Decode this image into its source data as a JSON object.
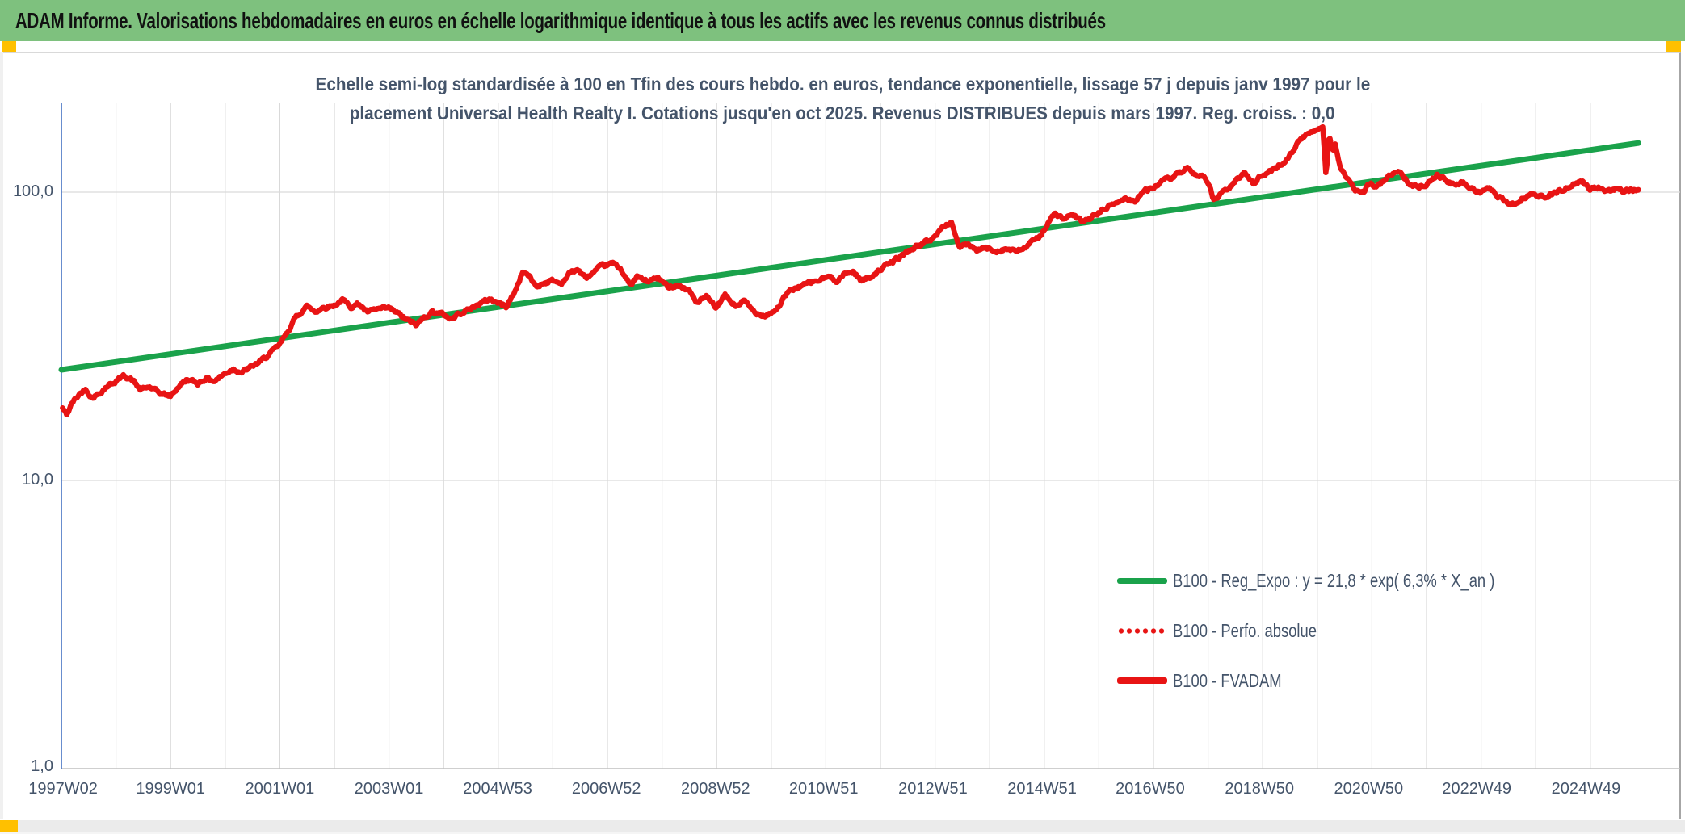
{
  "window": {
    "title": "ADAM Informe. Valorisations hebdomadaires en euros en échelle logarithmique identique à tous les actifs avec les revenus connus distribués",
    "accent_colors": {
      "title_bar": "#7ec17e",
      "corner_squares": "#ffc000",
      "reg_line": "#1aa24b",
      "series_red": "#e81414",
      "text_navy": "#44546a",
      "gridline": "#d9d9d9",
      "y_axis_line": "#4472c4"
    }
  },
  "chart": {
    "subtitle_line1": "Echelle semi-log standardisée à 100 en Tfin des cours hebdo. en euros, tendance exponentielle, lissage 57 j depuis janv 1997 pour le",
    "subtitle_line2": "placement Universal Health Realty I. Cotations jusqu'en oct 2025. Revenus DISTRIBUES depuis mars 1997. Reg. croiss. : 0,0",
    "y_ticks": [
      "100,0",
      "10,0",
      "1,0"
    ],
    "legend": [
      {
        "label": "B100 - Reg_Expo : y = 21,8 * exp( 6,3% *  X_an )",
        "style": "solid",
        "color": "#1aa24b"
      },
      {
        "label": "B100 - Perfo. absolue",
        "style": "dotted",
        "color": "#e81414"
      },
      {
        "label": "B100 - FVADAM",
        "style": "solid-thick",
        "color": "#e81414"
      }
    ]
  },
  "chart_data": {
    "type": "line",
    "title": "Echelle semi-log standardisée à 100 en Tfin des cours hebdo. en euros, tendance exponentielle, lissage 57 j depuis janv 1997 pour le placement Universal Health Realty I. Cotations jusqu'en oct 2025. Revenus DISTRIBUES depuis mars 1997. Reg. croiss. : 0,0",
    "y_axis": {
      "scale": "log10",
      "ticks": [
        100.0,
        10.0,
        1.0
      ],
      "tick_labels": [
        "100,0",
        "10,0",
        "1,0"
      ],
      "range_shown": [
        1.0,
        205.0
      ]
    },
    "x_axis": {
      "unit": "ISO week (weekly cotations)",
      "ticks": [
        {
          "label": "1997W02",
          "year": 1997.03
        },
        {
          "label": "1999W01",
          "year": 1999.0
        },
        {
          "label": "2001W01",
          "year": 2001.0
        },
        {
          "label": "2003W01",
          "year": 2003.0
        },
        {
          "label": "2004W53",
          "year": 2004.99
        },
        {
          "label": "2006W52",
          "year": 2006.98
        },
        {
          "label": "2008W52",
          "year": 2008.98
        },
        {
          "label": "2010W51",
          "year": 2010.96
        },
        {
          "label": "2012W51",
          "year": 2012.96
        },
        {
          "label": "2014W51",
          "year": 2014.96
        },
        {
          "label": "2016W50",
          "year": 2016.94
        },
        {
          "label": "2018W50",
          "year": 2018.94
        },
        {
          "label": "2020W50",
          "year": 2020.94
        },
        {
          "label": "2022W49",
          "year": 2022.92
        },
        {
          "label": "2024W49",
          "year": 2024.92
        }
      ],
      "gridlines_every_year": true,
      "grid_year_start": 1997,
      "grid_year_end": 2025,
      "range_years": [
        1997.0,
        2026.6
      ]
    },
    "series": [
      {
        "name": "B100 - Reg_Expo : y = 21,8 * exp( 6,3% *  X_an )",
        "color": "#1aa24b",
        "style": "solid",
        "width": 7,
        "points": [
          [
            1997.0,
            24.2
          ],
          [
            2025.88,
            148.0
          ]
        ]
      },
      {
        "name": "B100 - Perfo. absolue",
        "color": "#e81414",
        "style": "dotted",
        "width": 5,
        "coincident_with": "B100 - FVADAM"
      },
      {
        "name": "B100 - FVADAM",
        "color": "#e81414",
        "style": "solid",
        "width": 6.5,
        "points": [
          [
            1997.02,
            17.8
          ],
          [
            1997.1,
            16.9
          ],
          [
            1997.2,
            18.6
          ],
          [
            1997.33,
            19.9
          ],
          [
            1997.45,
            20.8
          ],
          [
            1997.55,
            19.4
          ],
          [
            1997.68,
            19.9
          ],
          [
            1997.83,
            21.2
          ],
          [
            1998.0,
            22.1
          ],
          [
            1998.15,
            23.1
          ],
          [
            1998.3,
            22.3
          ],
          [
            1998.45,
            20.6
          ],
          [
            1998.6,
            21.1
          ],
          [
            1998.8,
            20.1
          ],
          [
            1999.0,
            19.6
          ],
          [
            1999.15,
            21.2
          ],
          [
            1999.3,
            22.4
          ],
          [
            1999.5,
            21.7
          ],
          [
            1999.65,
            22.6
          ],
          [
            1999.8,
            22.1
          ],
          [
            2000.0,
            23.5
          ],
          [
            2000.15,
            24.4
          ],
          [
            2000.3,
            23.7
          ],
          [
            2000.5,
            24.9
          ],
          [
            2000.65,
            25.9
          ],
          [
            2000.8,
            27.3
          ],
          [
            2001.0,
            29.6
          ],
          [
            2001.15,
            33.0
          ],
          [
            2001.3,
            37.0
          ],
          [
            2001.5,
            40.2
          ],
          [
            2001.65,
            38.5
          ],
          [
            2001.8,
            39.8
          ],
          [
            2002.0,
            40.5
          ],
          [
            2002.15,
            42.3
          ],
          [
            2002.3,
            40.1
          ],
          [
            2002.45,
            41.0
          ],
          [
            2002.6,
            38.3
          ],
          [
            2002.8,
            39.3
          ],
          [
            2003.0,
            39.5
          ],
          [
            2003.15,
            38.1
          ],
          [
            2003.3,
            36.3
          ],
          [
            2003.5,
            34.6
          ],
          [
            2003.65,
            36.9
          ],
          [
            2003.8,
            38.5
          ],
          [
            2004.0,
            37.6
          ],
          [
            2004.15,
            36.3
          ],
          [
            2004.3,
            38.1
          ],
          [
            2004.5,
            39.4
          ],
          [
            2004.65,
            41.0
          ],
          [
            2004.85,
            42.6
          ],
          [
            2005.0,
            41.3
          ],
          [
            2005.15,
            40.1
          ],
          [
            2005.3,
            45.0
          ],
          [
            2005.45,
            53.0
          ],
          [
            2005.55,
            51.5
          ],
          [
            2005.7,
            47.0
          ],
          [
            2005.85,
            48.6
          ],
          [
            2006.0,
            49.4
          ],
          [
            2006.15,
            48.1
          ],
          [
            2006.3,
            52.2
          ],
          [
            2006.45,
            54.0
          ],
          [
            2006.6,
            50.3
          ],
          [
            2006.75,
            52.6
          ],
          [
            2006.9,
            55.4
          ],
          [
            2007.1,
            56.6
          ],
          [
            2007.25,
            54.2
          ],
          [
            2007.42,
            47.3
          ],
          [
            2007.55,
            51.0
          ],
          [
            2007.72,
            49.0
          ],
          [
            2007.92,
            50.4
          ],
          [
            2008.1,
            47.1
          ],
          [
            2008.3,
            47.6
          ],
          [
            2008.5,
            45.4
          ],
          [
            2008.65,
            41.2
          ],
          [
            2008.8,
            43.4
          ],
          [
            2009.0,
            39.6
          ],
          [
            2009.15,
            43.9
          ],
          [
            2009.35,
            40.1
          ],
          [
            2009.5,
            42.0
          ],
          [
            2009.7,
            38.2
          ],
          [
            2009.9,
            37.4
          ],
          [
            2010.1,
            39.2
          ],
          [
            2010.3,
            44.8
          ],
          [
            2010.5,
            47.0
          ],
          [
            2010.7,
            48.4
          ],
          [
            2010.9,
            49.6
          ],
          [
            2011.05,
            50.9
          ],
          [
            2011.2,
            49.4
          ],
          [
            2011.35,
            52.0
          ],
          [
            2011.5,
            53.1
          ],
          [
            2011.65,
            49.3
          ],
          [
            2011.8,
            50.7
          ],
          [
            2012.0,
            54.0
          ],
          [
            2012.2,
            57.0
          ],
          [
            2012.4,
            60.5
          ],
          [
            2012.6,
            64.0
          ],
          [
            2012.8,
            66.6
          ],
          [
            2013.0,
            70.2
          ],
          [
            2013.15,
            76.0
          ],
          [
            2013.3,
            78.6
          ],
          [
            2013.45,
            64.0
          ],
          [
            2013.6,
            66.2
          ],
          [
            2013.75,
            62.3
          ],
          [
            2013.9,
            64.1
          ],
          [
            2014.1,
            62.6
          ],
          [
            2014.3,
            63.6
          ],
          [
            2014.5,
            62.1
          ],
          [
            2014.7,
            65.2
          ],
          [
            2014.9,
            70.0
          ],
          [
            2015.05,
            77.0
          ],
          [
            2015.2,
            84.5
          ],
          [
            2015.35,
            80.5
          ],
          [
            2015.5,
            83.0
          ],
          [
            2015.72,
            79.0
          ],
          [
            2015.9,
            82.5
          ],
          [
            2016.1,
            87.5
          ],
          [
            2016.3,
            91.5
          ],
          [
            2016.5,
            95.0
          ],
          [
            2016.65,
            93.0
          ],
          [
            2016.8,
            100.0
          ],
          [
            2017.0,
            104.0
          ],
          [
            2017.2,
            110.0
          ],
          [
            2017.35,
            112.5
          ],
          [
            2017.5,
            117.0
          ],
          [
            2017.62,
            120.5
          ],
          [
            2017.72,
            114.5
          ],
          [
            2017.9,
            114.5
          ],
          [
            2018.0,
            109.0
          ],
          [
            2018.1,
            93.5
          ],
          [
            2018.25,
            99.0
          ],
          [
            2018.4,
            104.0
          ],
          [
            2018.55,
            111.0
          ],
          [
            2018.68,
            117.5
          ],
          [
            2018.82,
            107.5
          ],
          [
            2018.95,
            113.0
          ],
          [
            2019.1,
            117.0
          ],
          [
            2019.25,
            122.0
          ],
          [
            2019.4,
            127.0
          ],
          [
            2019.55,
            140.0
          ],
          [
            2019.7,
            153.0
          ],
          [
            2019.85,
            160.0
          ],
          [
            2020.0,
            166.0
          ],
          [
            2020.1,
            170.0
          ],
          [
            2020.16,
            115.0
          ],
          [
            2020.22,
            157.0
          ],
          [
            2020.28,
            140.0
          ],
          [
            2020.33,
            147.0
          ],
          [
            2020.42,
            121.0
          ],
          [
            2020.5,
            115.0
          ],
          [
            2020.6,
            107.0
          ],
          [
            2020.72,
            101.0
          ],
          [
            2020.85,
            99.5
          ],
          [
            2020.95,
            107.0
          ],
          [
            2021.1,
            105.0
          ],
          [
            2021.25,
            110.5
          ],
          [
            2021.4,
            117.5
          ],
          [
            2021.55,
            116.0
          ],
          [
            2021.7,
            107.0
          ],
          [
            2021.85,
            104.0
          ],
          [
            2022.0,
            107.0
          ],
          [
            2022.1,
            111.0
          ],
          [
            2022.2,
            115.0
          ],
          [
            2022.35,
            110.0
          ],
          [
            2022.5,
            105.5
          ],
          [
            2022.65,
            108.0
          ],
          [
            2022.8,
            103.0
          ],
          [
            2023.0,
            100.0
          ],
          [
            2023.15,
            103.0
          ],
          [
            2023.3,
            96.5
          ],
          [
            2023.45,
            93.0
          ],
          [
            2023.6,
            90.0
          ],
          [
            2023.75,
            95.0
          ],
          [
            2023.9,
            98.0
          ],
          [
            2024.05,
            97.5
          ],
          [
            2024.2,
            95.5
          ],
          [
            2024.35,
            100.0
          ],
          [
            2024.5,
            101.5
          ],
          [
            2024.65,
            106.0
          ],
          [
            2024.85,
            109.0
          ],
          [
            2025.0,
            103.0
          ],
          [
            2025.15,
            104.0
          ],
          [
            2025.3,
            101.0
          ],
          [
            2025.45,
            102.5
          ],
          [
            2025.6,
            101.0
          ],
          [
            2025.88,
            102.0
          ]
        ]
      }
    ]
  }
}
